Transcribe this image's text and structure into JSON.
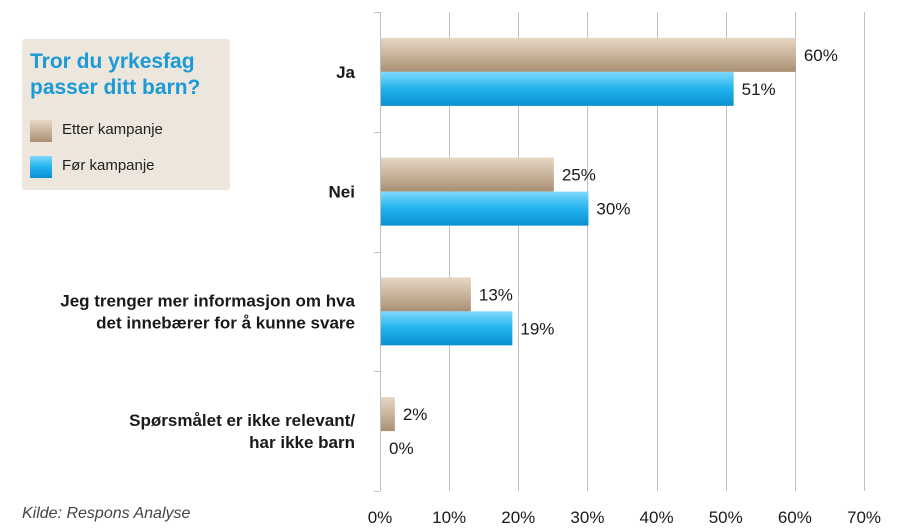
{
  "legend": {
    "title_line1": "Tror du yrkesfag",
    "title_line2": "passer ditt barn?"
  },
  "source": "Kilde: Respons Analyse",
  "colors": {
    "etter": "#c9b49c",
    "for": "#22b3ee",
    "grid": "#bfbfbf",
    "text": "#1a1a1a"
  },
  "chart_data": {
    "type": "bar",
    "orientation": "horizontal",
    "categories": [
      [
        "Ja"
      ],
      [
        "Nei"
      ],
      [
        "Jeg trenger mer informasjon om hva",
        "det innebærer for å kunne svare"
      ],
      [
        "Spørsmålet er ikke relevant/",
        "har ikke barn"
      ]
    ],
    "series": [
      {
        "name": "Etter kampanje",
        "values": [
          60,
          25,
          13,
          2
        ],
        "labels": [
          "60%",
          "25%",
          "13%",
          "2%"
        ]
      },
      {
        "name": "Før kampanje",
        "values": [
          51,
          30,
          19,
          0
        ],
        "labels": [
          "51%",
          "30%",
          "19%",
          "0%"
        ]
      }
    ],
    "xlim": [
      0,
      70
    ],
    "xticks": [
      0,
      10,
      20,
      30,
      40,
      50,
      60,
      70
    ],
    "xtick_labels": [
      "0%",
      "10%",
      "20%",
      "30%",
      "40%",
      "50%",
      "60%",
      "70%"
    ],
    "grid": true,
    "legend_position": "top-left"
  }
}
